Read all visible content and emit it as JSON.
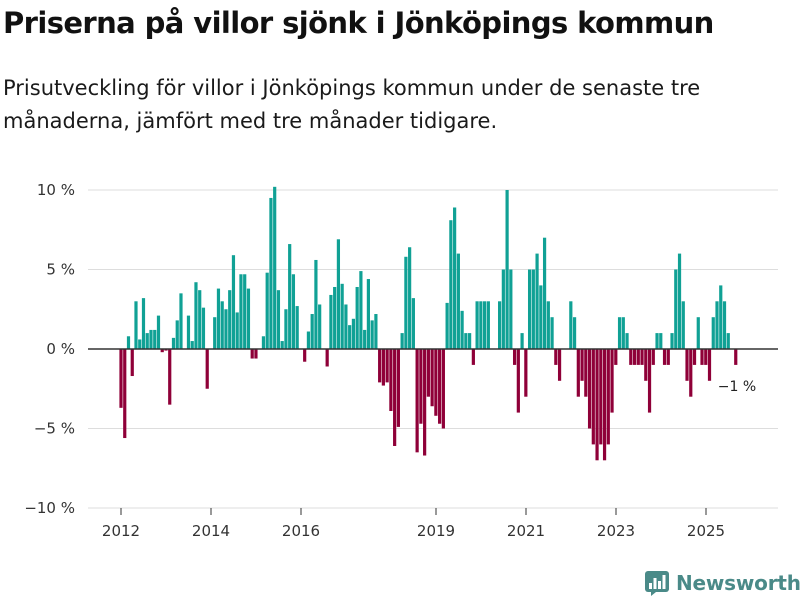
{
  "title": "Priserna på villor sjönk i Jönköpings kommun",
  "subtitle": "Prisutveckling för villor i Jönköpings kommun under de senaste tre månaderna, jämfört med tre månader tidigare.",
  "brand": "Newsworthy",
  "colors": {
    "positive": "#10a195",
    "negative": "#8f0038",
    "axis": "#333333",
    "grid": "#dddddd",
    "brand": "#4a8a88"
  },
  "chart_data": {
    "type": "bar",
    "title": "Priserna på villor sjönk i Jönköpings kommun",
    "xlabel": "",
    "ylabel": "",
    "ylim": [
      -10,
      10
    ],
    "y_ticks": [
      10,
      5,
      0,
      -5,
      -10
    ],
    "y_tick_labels": [
      "10 %",
      "5 %",
      "0 %",
      "−5 %",
      "−10 %"
    ],
    "x_ticks": [
      2012,
      2014,
      2016,
      2019,
      2021,
      2023,
      2025
    ],
    "x_tick_labels": [
      "2012",
      "2014",
      "2016",
      "2019",
      "2021",
      "2023",
      "2025"
    ],
    "x_start": 2012.0,
    "x_step": 0.0833,
    "annotation": "−1 %",
    "values": [
      -3.7,
      -5.6,
      0.8,
      -1.7,
      3.0,
      0.6,
      3.2,
      1.0,
      1.2,
      1.2,
      2.1,
      -0.2,
      -0.1,
      -3.5,
      0.7,
      1.8,
      3.5,
      0.0,
      2.1,
      0.5,
      4.2,
      3.7,
      2.6,
      -2.5,
      0.0,
      2.0,
      3.8,
      3.0,
      2.5,
      3.7,
      5.9,
      2.3,
      4.7,
      4.7,
      3.8,
      -0.6,
      -0.6,
      0.0,
      0.8,
      4.8,
      9.5,
      10.2,
      3.7,
      0.5,
      2.5,
      6.6,
      4.7,
      2.7,
      0.0,
      -0.8,
      1.1,
      2.2,
      5.6,
      2.8,
      0.0,
      -1.1,
      3.4,
      3.9,
      6.9,
      4.1,
      2.8,
      1.5,
      1.9,
      3.9,
      4.9,
      1.2,
      4.4,
      1.8,
      2.2,
      -2.1,
      -2.3,
      -2.1,
      -3.9,
      -6.1,
      -4.9,
      1.0,
      5.8,
      6.4,
      3.2,
      -6.5,
      -4.7,
      -6.7,
      -3.0,
      -3.6,
      -4.2,
      -4.7,
      -5.0,
      2.9,
      8.1,
      8.9,
      6.0,
      2.4,
      1.0,
      1.0,
      -1.0,
      3.0,
      3.0,
      3.0,
      3.0,
      0.0,
      0.0,
      3.0,
      5.0,
      10.0,
      5.0,
      -1.0,
      -4.0,
      1.0,
      -3.0,
      5.0,
      5.0,
      6.0,
      4.0,
      7.0,
      3.0,
      2.0,
      -1.0,
      -2.0,
      0.0,
      0.0,
      3.0,
      2.0,
      -3.0,
      -2.0,
      -3.0,
      -5.0,
      -6.0,
      -7.0,
      -6.0,
      -7.0,
      -6.0,
      -4.0,
      -1.0,
      2.0,
      2.0,
      1.0,
      -1.0,
      -1.0,
      -1.0,
      -1.0,
      -2.0,
      -4.0,
      -1.0,
      1.0,
      1.0,
      -1.0,
      -1.0,
      1.0,
      5.0,
      6.0,
      3.0,
      -2.0,
      -3.0,
      -1.0,
      2.0,
      -1.0,
      -1.0,
      -2.0,
      2.0,
      3.0,
      4.0,
      3.0,
      1.0,
      0.0,
      -1.0
    ]
  }
}
